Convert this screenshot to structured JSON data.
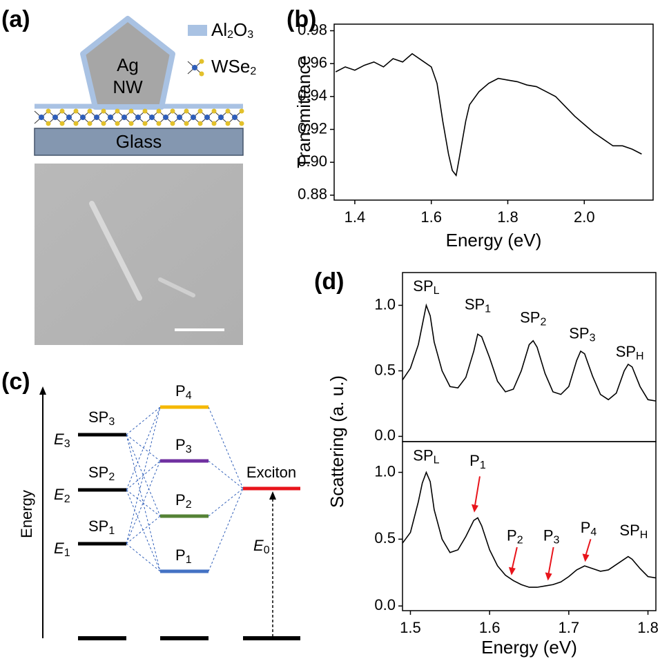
{
  "panels": {
    "a": "(a)",
    "b": "(b)",
    "c": "(c)",
    "d": "(d)"
  },
  "diagram_a": {
    "particle": [
      "Ag",
      "NW"
    ],
    "coating": {
      "text": "Al",
      "sub1": "2",
      "mid": "O",
      "sub2": "3"
    },
    "layer": {
      "text": "WSe",
      "sub": "2"
    },
    "substrate": "Glass"
  },
  "diagram_c": {
    "axis": "Energy",
    "sp_levels": [
      {
        "text": "SP",
        "sub": "3",
        "e": "E",
        "esub": "3"
      },
      {
        "text": "SP",
        "sub": "2",
        "e": "E",
        "esub": "2"
      },
      {
        "text": "SP",
        "sub": "1",
        "e": "E",
        "esub": "1"
      }
    ],
    "p_levels": [
      {
        "text": "P",
        "sub": "4"
      },
      {
        "text": "P",
        "sub": "3"
      },
      {
        "text": "P",
        "sub": "2"
      },
      {
        "text": "P",
        "sub": "1"
      }
    ],
    "exciton": "Exciton",
    "e0": {
      "text": "E",
      "sub": "0"
    }
  },
  "chart_data": [
    {
      "type": "line",
      "xlabel": "Energy (eV)",
      "ylabel": "Transmittance",
      "color": "#000000",
      "x": [
        1.35,
        1.375,
        1.4,
        1.425,
        1.45,
        1.475,
        1.5,
        1.525,
        1.55,
        1.575,
        1.6,
        1.615,
        1.63,
        1.645,
        1.655,
        1.665,
        1.675,
        1.69,
        1.7,
        1.725,
        1.75,
        1.775,
        1.8,
        1.825,
        1.85,
        1.875,
        1.9,
        1.925,
        1.95,
        1.975,
        2.0,
        2.025,
        2.05,
        2.075,
        2.1,
        2.125,
        2.15
      ],
      "values": [
        0.955,
        0.958,
        0.956,
        0.959,
        0.961,
        0.958,
        0.963,
        0.961,
        0.966,
        0.962,
        0.958,
        0.948,
        0.925,
        0.905,
        0.895,
        0.892,
        0.905,
        0.925,
        0.935,
        0.943,
        0.948,
        0.951,
        0.95,
        0.949,
        0.947,
        0.946,
        0.943,
        0.94,
        0.934,
        0.928,
        0.923,
        0.918,
        0.914,
        0.91,
        0.91,
        0.908,
        0.905
      ],
      "xlim": [
        1.346,
        2.18
      ],
      "ylim": [
        0.877,
        0.984
      ],
      "xticks": [
        1.4,
        1.6,
        1.8,
        {
          "value": 2,
          "label": "2.0"
        }
      ],
      "yticks": [
        0.88,
        {
          "value": 0.9,
          "label": "0.90"
        },
        0.92,
        0.94,
        0.96,
        0.98
      ]
    },
    {
      "type": "line",
      "ylabel": "Scattering (a. u.)",
      "color": "#000000",
      "x": [
        1.49,
        1.5,
        1.51,
        1.515,
        1.52,
        1.525,
        1.53,
        1.54,
        1.55,
        1.56,
        1.57,
        1.58,
        1.585,
        1.59,
        1.6,
        1.61,
        1.62,
        1.63,
        1.64,
        1.65,
        1.655,
        1.66,
        1.67,
        1.68,
        1.69,
        1.7,
        1.71,
        1.715,
        1.72,
        1.73,
        1.74,
        1.75,
        1.76,
        1.77,
        1.775,
        1.78,
        1.79,
        1.8,
        1.81
      ],
      "values": [
        0.43,
        0.52,
        0.7,
        0.85,
        1.0,
        0.92,
        0.72,
        0.5,
        0.38,
        0.37,
        0.45,
        0.65,
        0.78,
        0.76,
        0.6,
        0.42,
        0.34,
        0.36,
        0.5,
        0.7,
        0.73,
        0.68,
        0.48,
        0.34,
        0.32,
        0.38,
        0.58,
        0.65,
        0.63,
        0.46,
        0.32,
        0.28,
        0.33,
        0.5,
        0.55,
        0.53,
        0.38,
        0.28,
        0.27
      ],
      "xlim": [
        1.49,
        1.81
      ],
      "ylim": [
        -0.04,
        1.25
      ],
      "yticks": [
        {
          "value": 0,
          "label": "0.0"
        },
        {
          "value": 0.5,
          "label": "0.5"
        },
        {
          "value": 1,
          "label": "1.0"
        }
      ],
      "annotations": [
        {
          "text": "SP",
          "sub": "L",
          "x": 1.52,
          "y": 1.14
        },
        {
          "text": "SP",
          "sub": "1",
          "x": 1.585,
          "y": 1.0
        },
        {
          "text": "SP",
          "sub": "2",
          "x": 1.655,
          "y": 0.9
        },
        {
          "text": "SP",
          "sub": "3",
          "x": 1.717,
          "y": 0.78
        },
        {
          "text": "SP",
          "sub": "H",
          "x": 1.777,
          "y": 0.64
        }
      ]
    },
    {
      "type": "line",
      "xlabel": "Energy (eV)",
      "color": "#000000",
      "x": [
        1.49,
        1.5,
        1.51,
        1.515,
        1.52,
        1.525,
        1.53,
        1.54,
        1.55,
        1.56,
        1.57,
        1.58,
        1.585,
        1.59,
        1.6,
        1.61,
        1.62,
        1.63,
        1.64,
        1.65,
        1.66,
        1.67,
        1.68,
        1.69,
        1.7,
        1.71,
        1.72,
        1.73,
        1.74,
        1.75,
        1.76,
        1.77,
        1.775,
        1.78,
        1.79,
        1.8,
        1.81
      ],
      "values": [
        0.47,
        0.55,
        0.78,
        0.92,
        1.0,
        0.93,
        0.72,
        0.5,
        0.4,
        0.42,
        0.52,
        0.64,
        0.66,
        0.6,
        0.42,
        0.3,
        0.23,
        0.19,
        0.16,
        0.14,
        0.14,
        0.15,
        0.16,
        0.18,
        0.22,
        0.27,
        0.3,
        0.28,
        0.26,
        0.27,
        0.31,
        0.35,
        0.37,
        0.35,
        0.28,
        0.22,
        0.21
      ],
      "xlim": [
        1.49,
        1.81
      ],
      "ylim": [
        -0.035,
        1.23
      ],
      "xticks": [
        1.5,
        1.6,
        1.7,
        1.8
      ],
      "yticks": [
        {
          "value": 0,
          "label": "0.0"
        },
        {
          "value": 0.5,
          "label": "0.5"
        },
        {
          "value": 1,
          "label": "1.0"
        }
      ],
      "annotations": [
        {
          "text": "SP",
          "sub": "L",
          "x": 1.52,
          "y": 1.12
        },
        {
          "text": "P",
          "sub": "1",
          "x": 1.585,
          "y": 1.08,
          "arrow": [
            0.97,
            0.71
          ],
          "arrow_color": "#e8141b"
        },
        {
          "text": "P",
          "sub": "2",
          "x": 1.632,
          "y": 0.52,
          "arrow": [
            0.44,
            0.24
          ],
          "arrow_color": "#e8141b"
        },
        {
          "text": "P",
          "sub": "3",
          "x": 1.678,
          "y": 0.52,
          "arrow": [
            0.44,
            0.2
          ],
          "arrow_color": "#e8141b"
        },
        {
          "text": "P",
          "sub": "4",
          "x": 1.725,
          "y": 0.58,
          "arrow": [
            0.5,
            0.34
          ],
          "arrow_color": "#e8141b"
        },
        {
          "text": "SP",
          "sub": "H",
          "x": 1.782,
          "y": 0.56
        }
      ]
    }
  ]
}
